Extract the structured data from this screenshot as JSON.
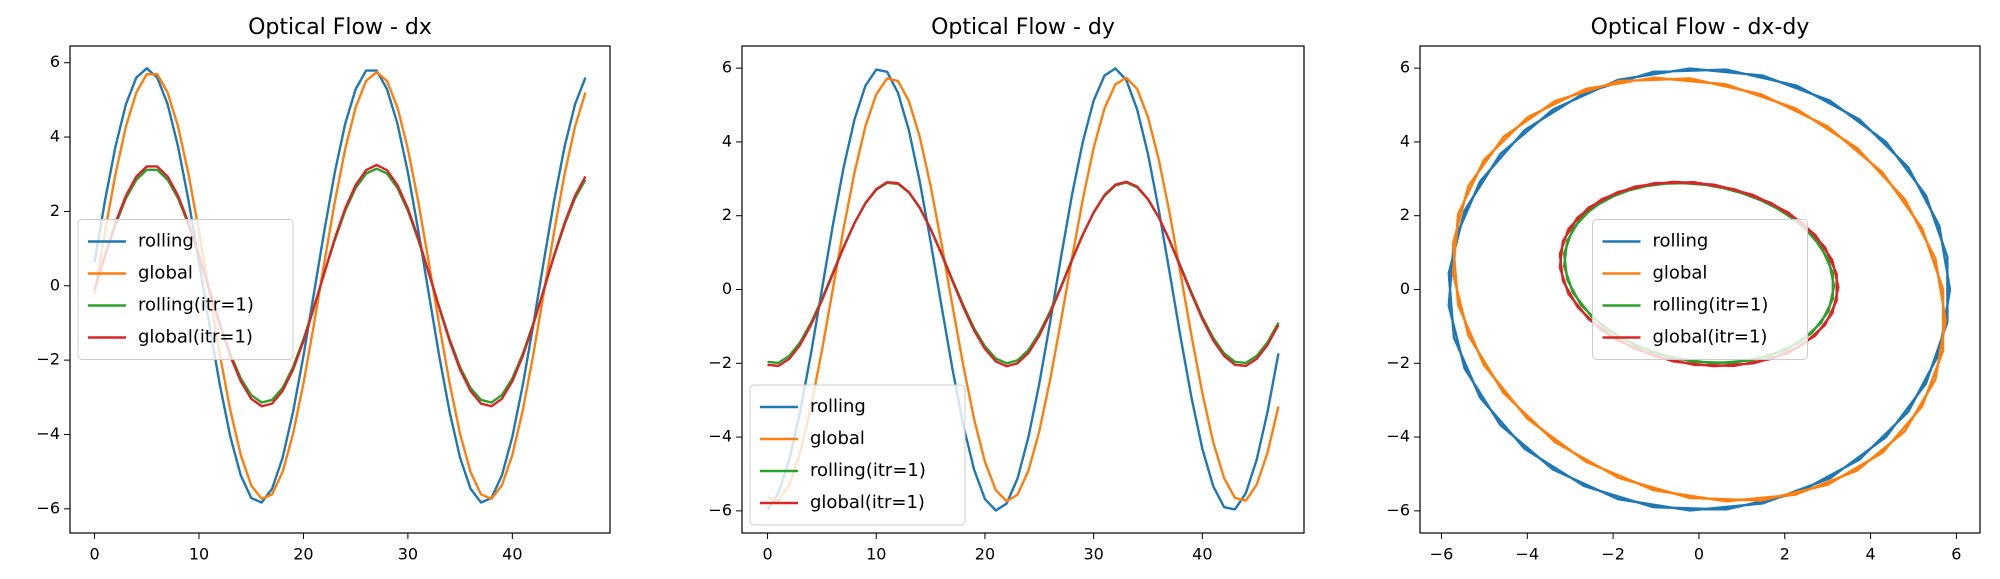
{
  "chart_data": [
    {
      "type": "line",
      "title": "Optical Flow - dx",
      "x": [
        0,
        1,
        2,
        3,
        4,
        5,
        6,
        7,
        8,
        9,
        10,
        11,
        12,
        13,
        14,
        15,
        16,
        17,
        18,
        19,
        20,
        21,
        22,
        23,
        24,
        25,
        26,
        27,
        28,
        29,
        30,
        31,
        32,
        33,
        34,
        35,
        36,
        37,
        38,
        39,
        40,
        41,
        42,
        43,
        44,
        45,
        46,
        47
      ],
      "series": [
        {
          "name": "rolling",
          "color": "#1f77b4",
          "values": [
            0.64,
            2.29,
            3.74,
            4.88,
            5.6,
            5.85,
            5.6,
            4.88,
            3.74,
            2.29,
            0.64,
            -1.06,
            -2.67,
            -4.06,
            -5.1,
            -5.71,
            -5.83,
            -5.46,
            -4.63,
            -3.4,
            -1.89,
            -0.21,
            1.48,
            3.05,
            4.36,
            5.29,
            5.79,
            5.79,
            5.29,
            4.36,
            3.05,
            1.48,
            -0.21,
            -1.89,
            -3.4,
            -4.63,
            -5.46,
            -5.83,
            -5.71,
            -5.1,
            -4.06,
            -2.67,
            -1.06,
            0.64,
            2.29,
            3.74,
            4.88,
            5.6
          ]
        },
        {
          "name": "global",
          "color": "#ff7f0e",
          "values": [
            -0.21,
            1.45,
            3.0,
            4.28,
            5.2,
            5.69,
            5.69,
            5.2,
            4.28,
            3.0,
            1.45,
            -0.21,
            -1.86,
            -3.35,
            -4.55,
            -5.37,
            -5.73,
            -5.61,
            -5.01,
            -3.99,
            -2.63,
            -1.05,
            0.63,
            2.25,
            3.68,
            4.8,
            5.51,
            5.75,
            5.51,
            4.8,
            3.68,
            2.25,
            0.63,
            -1.05,
            -2.63,
            -3.99,
            -5.01,
            -5.61,
            -5.73,
            -5.37,
            -4.55,
            -3.35,
            -1.86,
            -0.21,
            1.45,
            3.0,
            4.28,
            5.2
          ]
        },
        {
          "name": "rolling(itr=1)",
          "color": "#2ca02c",
          "values": [
            -0.11,
            0.8,
            1.64,
            2.35,
            2.85,
            3.12,
            3.12,
            2.85,
            2.35,
            1.64,
            0.8,
            -0.11,
            -1.02,
            -1.83,
            -2.49,
            -2.94,
            -3.14,
            -3.07,
            -2.75,
            -2.19,
            -1.44,
            -0.57,
            0.34,
            1.23,
            2.02,
            2.63,
            3.02,
            3.15,
            3.02,
            2.63,
            2.02,
            1.23,
            0.34,
            -0.57,
            -1.44,
            -2.19,
            -2.75,
            -3.07,
            -3.14,
            -2.94,
            -2.49,
            -1.83,
            -1.02,
            -0.11,
            0.8,
            1.64,
            2.35,
            2.85
          ]
        },
        {
          "name": "global(itr=1)",
          "color": "#d62728",
          "values": [
            -0.12,
            0.82,
            1.69,
            2.42,
            2.94,
            3.21,
            3.21,
            2.94,
            2.42,
            1.69,
            0.82,
            -0.12,
            -1.05,
            -1.89,
            -2.57,
            -3.04,
            -3.24,
            -3.17,
            -2.83,
            -2.26,
            -1.49,
            -0.59,
            0.35,
            1.27,
            2.08,
            2.71,
            3.11,
            3.25,
            3.11,
            2.71,
            2.08,
            1.27,
            0.35,
            -0.59,
            -1.49,
            -2.26,
            -2.83,
            -3.17,
            -3.24,
            -3.04,
            -2.57,
            -1.89,
            -1.05,
            -0.12,
            0.82,
            1.69,
            2.42,
            2.94
          ]
        }
      ],
      "xlim": [
        -2.35,
        49.35
      ],
      "xticks": [
        0,
        10,
        20,
        30,
        40
      ],
      "ylim": [
        -6.65,
        6.45
      ],
      "yticks": [
        {
          "value": -6,
          "label": "−6"
        },
        {
          "value": -4,
          "label": "−4"
        },
        {
          "value": -2,
          "label": "−2"
        },
        0,
        2,
        4,
        6
      ],
      "legend": "center left"
    },
    {
      "type": "line",
      "title": "Optical Flow - dy",
      "x": [
        0,
        1,
        2,
        3,
        4,
        5,
        6,
        7,
        8,
        9,
        10,
        11,
        12,
        13,
        14,
        15,
        16,
        17,
        18,
        19,
        20,
        21,
        22,
        23,
        24,
        25,
        26,
        27,
        28,
        29,
        30,
        31,
        32,
        33,
        34,
        35,
        36,
        37,
        38,
        39,
        40,
        41,
        42,
        43,
        44,
        45,
        46,
        47
      ],
      "series": [
        {
          "name": "rolling",
          "color": "#1f77b4",
          "values": [
            -5.96,
            -5.52,
            -4.61,
            -3.31,
            -1.73,
            0,
            1.73,
            3.31,
            4.61,
            5.52,
            5.96,
            5.9,
            5.33,
            4.32,
            2.93,
            1.3,
            -0.44,
            -2.14,
            -3.67,
            -4.88,
            -5.68,
            -5.99,
            -5.8,
            -5.12,
            -4.0,
            -2.55,
            -0.88,
            0.88,
            2.55,
            4.0,
            5.12,
            5.8,
            5.99,
            5.68,
            4.88,
            3.67,
            2.14,
            0.44,
            -1.3,
            -2.93,
            -4.32,
            -5.33,
            -5.9,
            -5.96,
            -5.52,
            -4.61,
            -3.31,
            -1.73
          ]
        },
        {
          "name": "global",
          "color": "#ff7f0e",
          "values": [
            -5.65,
            -5.72,
            -5.29,
            -4.42,
            -3.17,
            -1.66,
            0,
            1.66,
            3.17,
            4.42,
            5.29,
            5.72,
            5.65,
            5.11,
            4.14,
            2.81,
            1.25,
            -0.42,
            -2.05,
            -3.51,
            -4.67,
            -5.44,
            -5.74,
            -5.56,
            -4.91,
            -3.84,
            -2.44,
            -0.84,
            0.84,
            2.44,
            3.84,
            4.91,
            5.56,
            5.74,
            5.44,
            4.67,
            3.51,
            2.05,
            0.42,
            -1.25,
            -2.81,
            -4.14,
            -5.11,
            -5.65,
            -5.72,
            -5.29,
            -4.42,
            -3.17
          ]
        },
        {
          "name": "rolling(itr=1)",
          "color": "#2ca02c",
          "values": [
            -1.96,
            -1.99,
            -1.8,
            -1.43,
            -0.9,
            -0.26,
            0.45,
            1.16,
            1.8,
            2.33,
            2.7,
            2.89,
            2.86,
            2.63,
            2.21,
            1.65,
            0.98,
            0.27,
            -0.42,
            -1.05,
            -1.54,
            -1.87,
            -2.0,
            -1.92,
            -1.64,
            -1.18,
            -0.59,
            0.09,
            0.81,
            1.49,
            2.08,
            2.54,
            2.82,
            2.9,
            2.77,
            2.44,
            1.95,
            1.32,
            0.63,
            -0.08,
            -0.75,
            -1.31,
            -1.73,
            -1.96,
            -1.99,
            -1.8,
            -1.43,
            -0.9
          ]
        },
        {
          "name": "global(itr=1)",
          "color": "#d62728",
          "values": [
            -2.04,
            -2.07,
            -1.88,
            -1.5,
            -0.96,
            -0.3,
            0.42,
            1.14,
            1.8,
            2.34,
            2.72,
            2.91,
            2.88,
            2.64,
            2.22,
            1.64,
            0.96,
            0.24,
            -0.47,
            -1.11,
            -1.61,
            -1.95,
            -2.08,
            -2.0,
            -1.72,
            -1.25,
            -0.64,
            0.06,
            0.79,
            1.48,
            2.09,
            2.56,
            2.84,
            2.92,
            2.79,
            2.45,
            1.95,
            1.31,
            0.6,
            -0.12,
            -0.8,
            -1.38,
            -1.8,
            -2.04,
            -2.07,
            -1.88,
            -1.5,
            -0.96
          ]
        }
      ],
      "xlim": [
        -2.35,
        49.35
      ],
      "xticks": [
        0,
        10,
        20,
        30,
        40
      ],
      "ylim": [
        -6.6,
        6.6
      ],
      "yticks": [
        {
          "value": -6,
          "label": "−6"
        },
        {
          "value": -4,
          "label": "−4"
        },
        {
          "value": -2,
          "label": "−2"
        },
        0,
        2,
        4,
        6
      ],
      "legend": "lower left"
    },
    {
      "type": "line",
      "title": "Optical Flow - dx-dy",
      "series": [
        {
          "name": "rolling",
          "color": "#1f77b4",
          "x": [
            0.64,
            2.29,
            3.74,
            4.88,
            5.6,
            5.85,
            5.6,
            4.88,
            3.74,
            2.29,
            0.64,
            -1.06,
            -2.67,
            -4.06,
            -5.1,
            -5.71,
            -5.83,
            -5.46,
            -4.63,
            -3.4,
            -1.89,
            -0.21,
            1.48,
            3.05,
            4.36,
            5.29,
            5.79,
            5.79,
            5.29,
            4.36,
            3.05,
            1.48,
            -0.21,
            -1.89,
            -3.4,
            -4.63,
            -5.46,
            -5.83,
            -5.71,
            -5.1,
            -4.06,
            -2.67,
            -1.06,
            0.64,
            2.29,
            3.74,
            4.88,
            5.6
          ],
          "values": [
            -5.96,
            -5.52,
            -4.61,
            -3.31,
            -1.73,
            0,
            1.73,
            3.31,
            4.61,
            5.52,
            5.96,
            5.9,
            5.33,
            4.32,
            2.93,
            1.3,
            -0.44,
            -2.14,
            -3.67,
            -4.88,
            -5.68,
            -5.99,
            -5.8,
            -5.12,
            -4.0,
            -2.55,
            -0.88,
            0.88,
            2.55,
            4.0,
            5.12,
            5.8,
            5.99,
            5.68,
            4.88,
            3.67,
            2.14,
            0.44,
            -1.3,
            -2.93,
            -4.32,
            -5.33,
            -5.9,
            -5.96,
            -5.52,
            -4.61,
            -3.31,
            -1.73
          ]
        },
        {
          "name": "global",
          "color": "#ff7f0e",
          "x": [
            -0.21,
            1.45,
            3.0,
            4.28,
            5.2,
            5.69,
            5.69,
            5.2,
            4.28,
            3.0,
            1.45,
            -0.21,
            -1.86,
            -3.35,
            -4.55,
            -5.37,
            -5.73,
            -5.61,
            -5.01,
            -3.99,
            -2.63,
            -1.05,
            0.63,
            2.25,
            3.68,
            4.8,
            5.51,
            5.75,
            5.51,
            4.8,
            3.68,
            2.25,
            0.63,
            -1.05,
            -2.63,
            -3.99,
            -5.01,
            -5.61,
            -5.73,
            -5.37,
            -4.55,
            -3.35,
            -1.86,
            -0.21,
            1.45,
            3.0,
            4.28,
            5.2
          ],
          "values": [
            -5.65,
            -5.72,
            -5.29,
            -4.42,
            -3.17,
            -1.66,
            0,
            1.66,
            3.17,
            4.42,
            5.29,
            5.72,
            5.65,
            5.11,
            4.14,
            2.81,
            1.25,
            -0.42,
            -2.05,
            -3.51,
            -4.67,
            -5.44,
            -5.74,
            -5.56,
            -4.91,
            -3.84,
            -2.44,
            -0.84,
            0.84,
            2.44,
            3.84,
            4.91,
            5.56,
            5.74,
            5.44,
            4.67,
            3.51,
            2.05,
            0.42,
            -1.25,
            -2.81,
            -4.14,
            -5.11,
            -5.65,
            -5.72,
            -5.29,
            -4.42,
            -3.17
          ]
        },
        {
          "name": "rolling(itr=1)",
          "color": "#2ca02c",
          "x": [
            -0.11,
            0.8,
            1.64,
            2.35,
            2.85,
            3.12,
            3.12,
            2.85,
            2.35,
            1.64,
            0.8,
            -0.11,
            -1.02,
            -1.83,
            -2.49,
            -2.94,
            -3.14,
            -3.07,
            -2.75,
            -2.19,
            -1.44,
            -0.57,
            0.34,
            1.23,
            2.02,
            2.63,
            3.02,
            3.15,
            3.02,
            2.63,
            2.02,
            1.23,
            0.34,
            -0.57,
            -1.44,
            -2.19,
            -2.75,
            -3.07,
            -3.14,
            -2.94,
            -2.49,
            -1.83,
            -1.02,
            -0.11,
            0.8,
            1.64,
            2.35,
            2.85
          ],
          "values": [
            -1.96,
            -1.99,
            -1.8,
            -1.43,
            -0.9,
            -0.26,
            0.45,
            1.16,
            1.8,
            2.33,
            2.7,
            2.89,
            2.86,
            2.63,
            2.21,
            1.65,
            0.98,
            0.27,
            -0.42,
            -1.05,
            -1.54,
            -1.87,
            -2.0,
            -1.92,
            -1.64,
            -1.18,
            -0.59,
            0.09,
            0.81,
            1.49,
            2.08,
            2.54,
            2.82,
            2.9,
            2.77,
            2.44,
            1.95,
            1.32,
            0.63,
            -0.08,
            -0.75,
            -1.31,
            -1.73,
            -1.96,
            -1.99,
            -1.8,
            -1.43,
            -0.9
          ]
        },
        {
          "name": "global(itr=1)",
          "color": "#d62728",
          "x": [
            -0.12,
            0.82,
            1.69,
            2.42,
            2.94,
            3.21,
            3.21,
            2.94,
            2.42,
            1.69,
            0.82,
            -0.12,
            -1.05,
            -1.89,
            -2.57,
            -3.04,
            -3.24,
            -3.17,
            -2.83,
            -2.26,
            -1.49,
            -0.59,
            0.35,
            1.27,
            2.08,
            2.71,
            3.11,
            3.25,
            3.11,
            2.71,
            2.08,
            1.27,
            0.35,
            -0.59,
            -1.49,
            -2.26,
            -2.83,
            -3.17,
            -3.24,
            -3.04,
            -2.57,
            -1.89,
            -1.05,
            -0.12,
            0.82,
            1.69,
            2.42,
            2.94
          ],
          "values": [
            -2.04,
            -2.07,
            -1.88,
            -1.5,
            -0.96,
            -0.3,
            0.42,
            1.14,
            1.8,
            2.34,
            2.72,
            2.91,
            2.88,
            2.64,
            2.22,
            1.64,
            0.96,
            0.24,
            -0.47,
            -1.11,
            -1.61,
            -1.95,
            -2.08,
            -2.0,
            -1.72,
            -1.25,
            -0.64,
            0.06,
            0.79,
            1.48,
            2.09,
            2.56,
            2.84,
            2.92,
            2.79,
            2.45,
            1.95,
            1.31,
            0.6,
            -0.12,
            -0.8,
            -1.38,
            -1.8,
            -2.04,
            -2.07,
            -1.88,
            -1.5,
            -0.96
          ]
        }
      ],
      "xlim": [
        -6.5,
        6.55
      ],
      "xticks": [
        {
          "value": -6,
          "label": "−6"
        },
        {
          "value": -4,
          "label": "−4"
        },
        {
          "value": -2,
          "label": "−2"
        },
        0,
        2,
        4,
        6
      ],
      "ylim": [
        -6.6,
        6.6
      ],
      "yticks": [
        {
          "value": -6,
          "label": "−6"
        },
        {
          "value": -4,
          "label": "−4"
        },
        {
          "value": -2,
          "label": "−2"
        },
        0,
        2,
        4,
        6
      ],
      "legend": "center"
    }
  ]
}
